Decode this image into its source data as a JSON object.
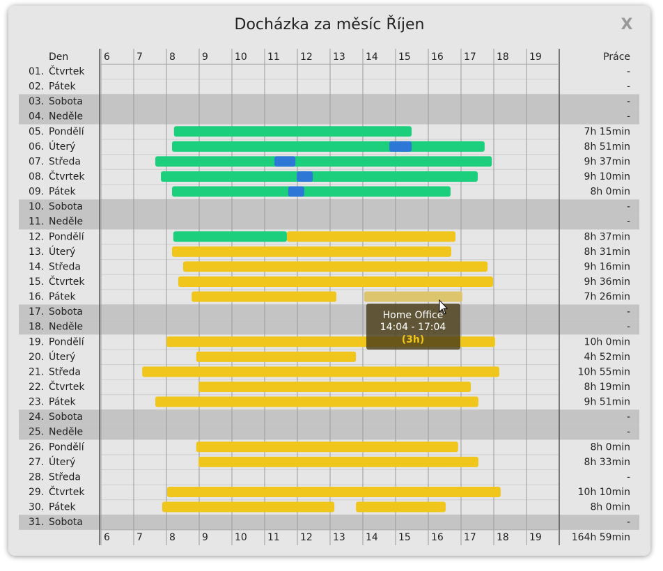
{
  "chart_data": {
    "type": "timeline",
    "title": "Docházka za měsíc Říjen",
    "close_label": "X",
    "day_header": "Den",
    "total_header": "Práce",
    "grand_total": "164h 59min",
    "xlim": [
      6,
      20
    ],
    "xticks": [
      6,
      7,
      8,
      9,
      10,
      11,
      12,
      13,
      14,
      15,
      16,
      17,
      18,
      19
    ],
    "rows": [
      {
        "num": "01.",
        "name": "Čtvrtek",
        "weekend": false,
        "total": "-",
        "segments": []
      },
      {
        "num": "02.",
        "name": "Pátek",
        "weekend": false,
        "total": "-",
        "segments": []
      },
      {
        "num": "03.",
        "name": "Sobota",
        "weekend": true,
        "total": "-",
        "segments": []
      },
      {
        "num": "04.",
        "name": "Neděle",
        "weekend": true,
        "total": "-",
        "segments": []
      },
      {
        "num": "05.",
        "name": "Pondělí",
        "weekend": false,
        "total": "7h 15min",
        "segments": [
          {
            "start": 8.23,
            "end": 15.49,
            "color": "#1ccf7c"
          }
        ]
      },
      {
        "num": "06.",
        "name": "Úterý",
        "weekend": false,
        "total": "8h 51min",
        "segments": [
          {
            "start": 8.17,
            "end": 17.72,
            "color": "#1ccf7c"
          },
          {
            "start": 14.81,
            "end": 15.49,
            "color": "#2d78d6"
          }
        ]
      },
      {
        "num": "07.",
        "name": "Středa",
        "weekend": false,
        "total": "9h 37min",
        "segments": [
          {
            "start": 7.66,
            "end": 17.94,
            "color": "#1ccf7c"
          },
          {
            "start": 11.3,
            "end": 11.94,
            "color": "#2d78d6"
          }
        ]
      },
      {
        "num": "08.",
        "name": "Čtvrtek",
        "weekend": false,
        "total": "9h 10min",
        "segments": [
          {
            "start": 7.83,
            "end": 17.51,
            "color": "#1ccf7c"
          },
          {
            "start": 11.98,
            "end": 12.47,
            "color": "#2d78d6"
          }
        ]
      },
      {
        "num": "09.",
        "name": "Pátek",
        "weekend": false,
        "total": "8h 0min",
        "segments": [
          {
            "start": 8.17,
            "end": 16.68,
            "color": "#1ccf7c"
          },
          {
            "start": 11.72,
            "end": 12.21,
            "color": "#2d78d6"
          }
        ]
      },
      {
        "num": "10.",
        "name": "Sobota",
        "weekend": true,
        "total": "-",
        "segments": []
      },
      {
        "num": "11.",
        "name": "Neděle",
        "weekend": true,
        "total": "-",
        "segments": []
      },
      {
        "num": "12.",
        "name": "Pondělí",
        "weekend": false,
        "total": "8h 37min",
        "segments": [
          {
            "start": 8.21,
            "end": 11.68,
            "color": "#1ccf7c"
          },
          {
            "start": 11.68,
            "end": 16.83,
            "color": "#f0c51c"
          }
        ]
      },
      {
        "num": "13.",
        "name": "Úterý",
        "weekend": false,
        "total": "8h 31min",
        "segments": [
          {
            "start": 8.17,
            "end": 16.7,
            "color": "#f0c51c"
          }
        ]
      },
      {
        "num": "14.",
        "name": "Středa",
        "weekend": false,
        "total": "9h 16min",
        "segments": [
          {
            "start": 8.51,
            "end": 17.81,
            "color": "#f0c51c"
          }
        ]
      },
      {
        "num": "15.",
        "name": "Čtvrtek",
        "weekend": false,
        "total": "9h 36min",
        "segments": [
          {
            "start": 8.36,
            "end": 17.98,
            "color": "#f0c51c"
          }
        ]
      },
      {
        "num": "16.",
        "name": "Pátek",
        "weekend": false,
        "total": "7h 26min",
        "segments": [
          {
            "start": 8.77,
            "end": 13.19,
            "color": "#f0c51c"
          },
          {
            "start": 14.04,
            "end": 17.04,
            "color": "#dcc56c"
          }
        ]
      },
      {
        "num": "17.",
        "name": "Sobota",
        "weekend": true,
        "total": "-",
        "segments": []
      },
      {
        "num": "18.",
        "name": "Neděle",
        "weekend": true,
        "total": "-",
        "segments": []
      },
      {
        "num": "19.",
        "name": "Pondělí",
        "weekend": false,
        "total": "10h 0min",
        "segments": [
          {
            "start": 8.0,
            "end": 18.04,
            "color": "#f0c51c"
          }
        ]
      },
      {
        "num": "20.",
        "name": "Úterý",
        "weekend": false,
        "total": "4h 52min",
        "segments": [
          {
            "start": 8.91,
            "end": 13.79,
            "color": "#f0c51c"
          }
        ]
      },
      {
        "num": "21.",
        "name": "Středa",
        "weekend": false,
        "total": "10h 55min",
        "segments": [
          {
            "start": 7.26,
            "end": 18.17,
            "color": "#f0c51c"
          }
        ]
      },
      {
        "num": "22.",
        "name": "Čtvrtek",
        "weekend": false,
        "total": "8h 19min",
        "segments": [
          {
            "start": 8.98,
            "end": 17.3,
            "color": "#f0c51c"
          }
        ]
      },
      {
        "num": "23.",
        "name": "Pátek",
        "weekend": false,
        "total": "9h 51min",
        "segments": [
          {
            "start": 7.66,
            "end": 17.53,
            "color": "#f0c51c"
          }
        ]
      },
      {
        "num": "24.",
        "name": "Sobota",
        "weekend": true,
        "total": "-",
        "segments": []
      },
      {
        "num": "25.",
        "name": "Neděle",
        "weekend": true,
        "total": "-",
        "segments": []
      },
      {
        "num": "26.",
        "name": "Pondělí",
        "weekend": false,
        "total": "8h 0min",
        "segments": [
          {
            "start": 8.91,
            "end": 16.91,
            "color": "#f0c51c"
          }
        ]
      },
      {
        "num": "27.",
        "name": "Úterý",
        "weekend": false,
        "total": "8h 33min",
        "segments": [
          {
            "start": 8.98,
            "end": 17.53,
            "color": "#f0c51c"
          }
        ]
      },
      {
        "num": "28.",
        "name": "Středa",
        "weekend": false,
        "total": "-",
        "segments": []
      },
      {
        "num": "29.",
        "name": "Čtvrtek",
        "weekend": false,
        "total": "10h 10min",
        "segments": [
          {
            "start": 8.02,
            "end": 18.21,
            "color": "#f0c51c"
          }
        ]
      },
      {
        "num": "30.",
        "name": "Pátek",
        "weekend": false,
        "total": "8h 0min",
        "segments": [
          {
            "start": 7.87,
            "end": 13.13,
            "color": "#f0c51c"
          },
          {
            "start": 13.79,
            "end": 16.53,
            "color": "#f0c51c"
          }
        ]
      },
      {
        "num": "31.",
        "name": "Sobota",
        "weekend": true,
        "total": "-",
        "segments": []
      }
    ],
    "tooltip": {
      "title": "Home Office",
      "time": "14:04 - 17:04",
      "duration": "(3h)"
    }
  }
}
